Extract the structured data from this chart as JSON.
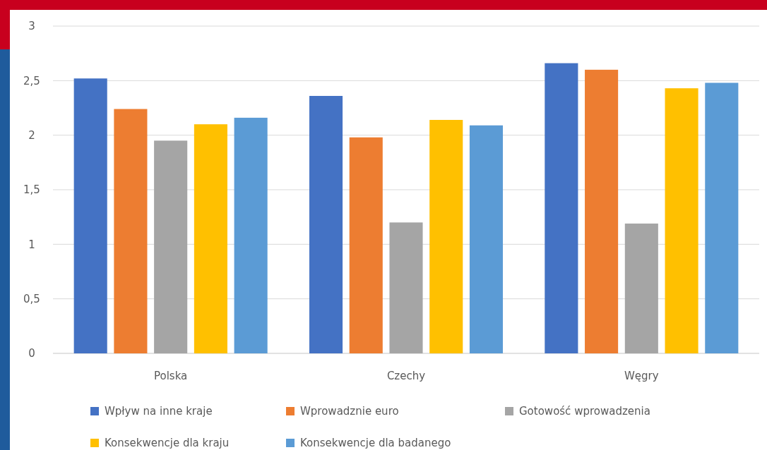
{
  "chart_data": {
    "type": "bar",
    "categories": [
      "Polska",
      "Czechy",
      "Węgry"
    ],
    "series": [
      {
        "name": "Wpływ na inne kraje",
        "color": "#4472c4",
        "values": [
          2.52,
          2.36,
          2.66
        ]
      },
      {
        "name": "Wprowadznie euro",
        "color": "#ed7d31",
        "values": [
          2.24,
          1.98,
          2.6
        ]
      },
      {
        "name": "Gotowość wprowadzenia",
        "color": "#a5a5a5",
        "values": [
          1.95,
          1.2,
          1.19
        ]
      },
      {
        "name": "Konsekwencje dla kraju",
        "color": "#ffc000",
        "values": [
          2.1,
          2.14,
          2.43
        ]
      },
      {
        "name": "Konsekwencje dla badanego",
        "color": "#5b9bd5",
        "values": [
          2.16,
          2.09,
          2.48
        ]
      }
    ],
    "ylim": [
      0,
      3
    ],
    "yticks": [
      {
        "value": 0,
        "label": "0"
      },
      {
        "value": 0.5,
        "label": "0,5"
      },
      {
        "value": 1,
        "label": "1"
      },
      {
        "value": 1.5,
        "label": "1,5"
      },
      {
        "value": 2,
        "label": "2"
      },
      {
        "value": 2.5,
        "label": "2,5"
      },
      {
        "value": 3,
        "label": "3"
      }
    ],
    "grid": "y",
    "legend": "bottom"
  }
}
